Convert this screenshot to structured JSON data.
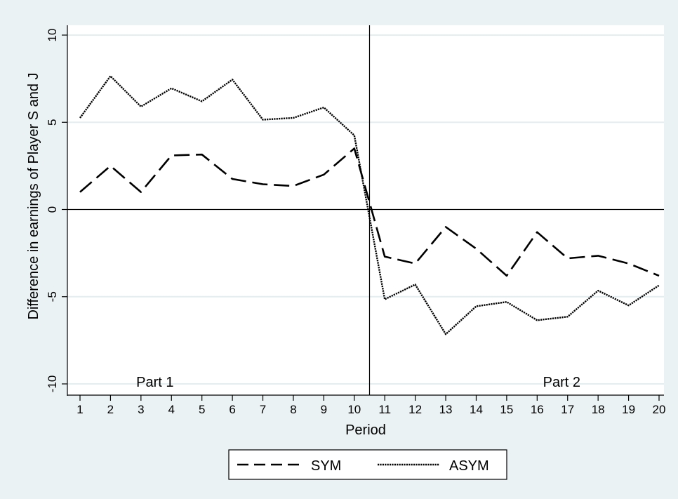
{
  "chart_data": {
    "type": "line",
    "title": "",
    "xlabel": "Period",
    "ylabel": "Difference in earnings of Player S and J",
    "x": [
      1,
      2,
      3,
      4,
      5,
      6,
      7,
      8,
      9,
      10,
      11,
      12,
      13,
      14,
      15,
      16,
      17,
      18,
      19,
      20
    ],
    "ylim": [
      -10,
      10
    ],
    "yticks": [
      -10,
      -5,
      0,
      5,
      10
    ],
    "series": [
      {
        "name": "SYM",
        "style": "dashed",
        "color": "#000000",
        "values": [
          1.0,
          2.5,
          1.0,
          3.1,
          3.15,
          1.75,
          1.45,
          1.35,
          2.0,
          3.5,
          -2.7,
          -3.1,
          -1.0,
          -2.25,
          -3.8,
          -1.3,
          -2.8,
          -2.65,
          -3.1,
          -3.8
        ]
      },
      {
        "name": "ASYM",
        "style": "dotted",
        "color": "#000000",
        "values": [
          5.25,
          7.65,
          5.9,
          6.95,
          6.2,
          7.45,
          5.15,
          5.25,
          5.85,
          4.25,
          -5.15,
          -4.3,
          -7.15,
          -5.55,
          -5.3,
          -6.35,
          -6.15,
          -4.65,
          -5.5,
          -4.35
        ]
      }
    ],
    "annotations": [
      {
        "text": "Part 1"
      },
      {
        "text": "Part 2"
      }
    ],
    "reference_lines": {
      "y": 0,
      "x_between_periods": [
        10,
        11
      ]
    },
    "grid": true,
    "legend_position": "bottom"
  },
  "colors": {
    "background": "#eaf2f3",
    "plot_background": "#ffffff",
    "grid": "#e3eef0",
    "line": "#000000"
  }
}
